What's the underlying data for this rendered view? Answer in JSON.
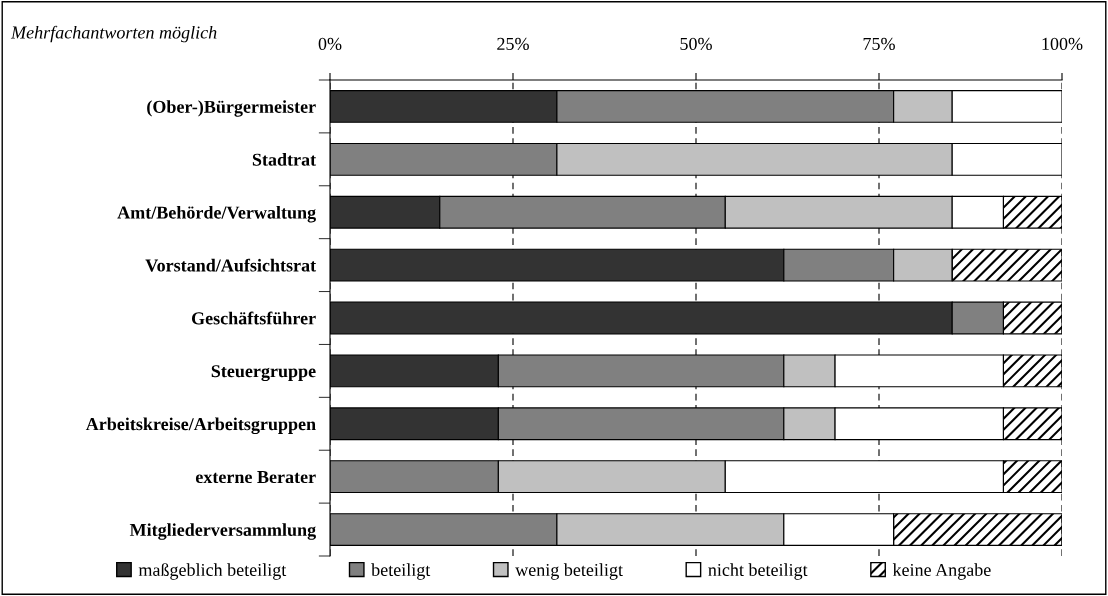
{
  "chart_data": {
    "type": "bar",
    "orientation": "horizontal",
    "stacked": true,
    "categories": [
      "(Ober-)Bürgermeister",
      "Stadtrat",
      "Amt/Behörde/Verwaltung",
      "Vorstand/Aufsichtsrat",
      "Geschäftsführer",
      "Steuergruppe",
      "Arbeitskreise/Arbeitsgruppen",
      "externe Berater",
      "Mitgliederversammlung"
    ],
    "series": [
      {
        "name": "maßgeblich beteiligt",
        "color": "#333333",
        "values": [
          31,
          0,
          15,
          62,
          85,
          23,
          23,
          0,
          0
        ]
      },
      {
        "name": "beteiligt",
        "color": "#808080",
        "values": [
          46,
          31,
          39,
          15,
          7,
          39,
          39,
          23,
          31
        ]
      },
      {
        "name": "wenig beteiligt",
        "color": "#c0c0c0",
        "values": [
          8,
          54,
          31,
          8,
          0,
          7,
          7,
          31,
          31
        ]
      },
      {
        "name": "nicht beteiligt",
        "color": "#ffffff",
        "values": [
          15,
          15,
          7,
          0,
          0,
          23,
          23,
          38,
          15
        ]
      },
      {
        "name": "keine Angabe",
        "color": "#000000",
        "values": [
          0,
          0,
          8,
          15,
          8,
          8,
          8,
          8,
          23
        ]
      }
    ],
    "xlim": [
      0,
      100
    ],
    "xticks": [
      {
        "value": 0,
        "label": "0%"
      },
      {
        "value": 25,
        "label": "25%"
      },
      {
        "value": 50,
        "label": "50%"
      },
      {
        "value": 75,
        "label": "75%"
      },
      {
        "value": 100,
        "label": "100%"
      }
    ],
    "grid": "x",
    "legend": "bottom",
    "annotations": [
      "Mehrfachantworten möglich"
    ]
  }
}
